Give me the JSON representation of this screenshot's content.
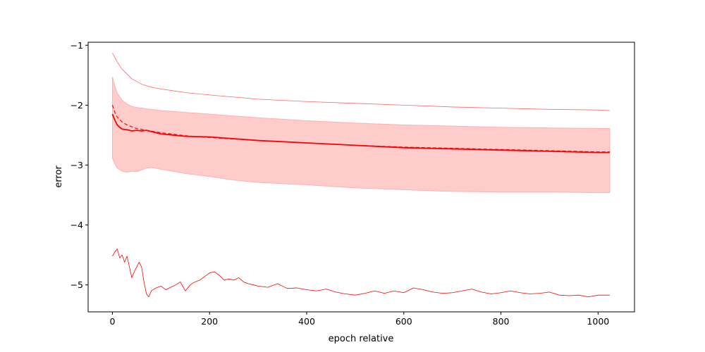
{
  "chart_data": {
    "type": "line",
    "title": "",
    "xlabel": "epoch relative",
    "ylabel": "error",
    "xlim": [
      -50,
      1075
    ],
    "ylim": [
      -5.45,
      -0.95
    ],
    "grid": false,
    "legend": "none",
    "x_ticks": [
      0,
      200,
      400,
      600,
      800,
      1000
    ],
    "x_tick_labels": [
      "0",
      "200",
      "400",
      "600",
      "800",
      "1000"
    ],
    "y_ticks": [
      -5,
      -4,
      -3,
      -2,
      -1
    ],
    "y_tick_labels": [
      "−5",
      "−4",
      "−3",
      "−2",
      "−1"
    ],
    "color": "#ff0000",
    "band_color": "#ffcccc",
    "band": {
      "x": [
        0,
        5,
        10,
        20,
        30,
        40,
        50,
        60,
        70,
        80,
        100,
        150,
        200,
        250,
        300,
        400,
        500,
        600,
        700,
        800,
        900,
        1000,
        1024
      ],
      "upper": [
        -1.53,
        -1.68,
        -1.8,
        -1.92,
        -1.98,
        -2.02,
        -2.04,
        -2.05,
        -2.06,
        -2.07,
        -2.09,
        -2.12,
        -2.15,
        -2.18,
        -2.21,
        -2.26,
        -2.3,
        -2.33,
        -2.35,
        -2.37,
        -2.38,
        -2.39,
        -2.39
      ],
      "lower": [
        -2.88,
        -2.98,
        -3.05,
        -3.1,
        -3.12,
        -3.1,
        -3.11,
        -3.08,
        -3.05,
        -3.04,
        -3.07,
        -3.14,
        -3.19,
        -3.25,
        -3.29,
        -3.33,
        -3.38,
        -3.41,
        -3.44,
        -3.45,
        -3.45,
        -3.46,
        -3.46
      ]
    },
    "series": [
      {
        "style": "dashed",
        "x": [
          0,
          5,
          10,
          20,
          30,
          40,
          50,
          70,
          100,
          150,
          200,
          300,
          400,
          500,
          600,
          700,
          800,
          900,
          1000,
          1024
        ],
        "y": [
          -2.0,
          -2.12,
          -2.2,
          -2.28,
          -2.33,
          -2.36,
          -2.39,
          -2.42,
          -2.46,
          -2.51,
          -2.54,
          -2.59,
          -2.63,
          -2.67,
          -2.7,
          -2.72,
          -2.74,
          -2.76,
          -2.78,
          -2.78
        ]
      },
      {
        "style": "solid-thick",
        "x": [
          0,
          5,
          10,
          15,
          20,
          30,
          40,
          50,
          60,
          70,
          80,
          100,
          150,
          200,
          250,
          300,
          400,
          500,
          600,
          700,
          800,
          900,
          1000,
          1024
        ],
        "y": [
          -2.15,
          -2.25,
          -2.33,
          -2.37,
          -2.4,
          -2.41,
          -2.43,
          -2.42,
          -2.43,
          -2.42,
          -2.44,
          -2.48,
          -2.52,
          -2.53,
          -2.56,
          -2.59,
          -2.63,
          -2.67,
          -2.71,
          -2.73,
          -2.75,
          -2.77,
          -2.79,
          -2.79
        ]
      },
      {
        "style": "solid-thin-light",
        "x": [
          0,
          10,
          20,
          40,
          60,
          80,
          100,
          150,
          200,
          300,
          400,
          500,
          600,
          700,
          800,
          900,
          1000,
          1024
        ],
        "y": [
          -1.13,
          -1.28,
          -1.4,
          -1.56,
          -1.65,
          -1.7,
          -1.73,
          -1.79,
          -1.83,
          -1.9,
          -1.94,
          -1.97,
          -2.0,
          -2.03,
          -2.05,
          -2.07,
          -2.08,
          -2.09
        ]
      },
      {
        "style": "solid-thin-noisy",
        "x": [
          0,
          5,
          10,
          15,
          20,
          25,
          30,
          35,
          40,
          45,
          50,
          55,
          60,
          65,
          70,
          75,
          80,
          90,
          100,
          110,
          120,
          130,
          140,
          150,
          160,
          170,
          180,
          190,
          200,
          210,
          220,
          230,
          240,
          250,
          260,
          270,
          280,
          290,
          300,
          320,
          340,
          360,
          380,
          400,
          420,
          440,
          460,
          480,
          500,
          520,
          540,
          560,
          580,
          600,
          620,
          640,
          660,
          680,
          700,
          720,
          740,
          760,
          780,
          800,
          820,
          840,
          860,
          880,
          900,
          920,
          940,
          960,
          980,
          1000,
          1024
        ],
        "y": [
          -4.52,
          -4.45,
          -4.4,
          -4.55,
          -4.5,
          -4.62,
          -4.52,
          -4.7,
          -4.88,
          -4.78,
          -4.7,
          -4.62,
          -4.7,
          -4.95,
          -5.15,
          -5.2,
          -5.1,
          -5.05,
          -5.02,
          -5.08,
          -5.04,
          -5.0,
          -4.95,
          -5.1,
          -5.0,
          -4.95,
          -4.92,
          -4.86,
          -4.8,
          -4.78,
          -4.84,
          -4.92,
          -4.9,
          -4.92,
          -4.88,
          -4.95,
          -4.98,
          -5.0,
          -5.02,
          -5.04,
          -4.98,
          -5.06,
          -5.05,
          -5.08,
          -5.1,
          -5.07,
          -5.12,
          -5.15,
          -5.17,
          -5.14,
          -5.1,
          -5.14,
          -5.1,
          -5.13,
          -5.05,
          -5.08,
          -5.12,
          -5.14,
          -5.13,
          -5.1,
          -5.07,
          -5.12,
          -5.15,
          -5.13,
          -5.1,
          -5.13,
          -5.15,
          -5.14,
          -5.12,
          -5.17,
          -5.18,
          -5.17,
          -5.2,
          -5.17,
          -5.17
        ]
      }
    ]
  }
}
